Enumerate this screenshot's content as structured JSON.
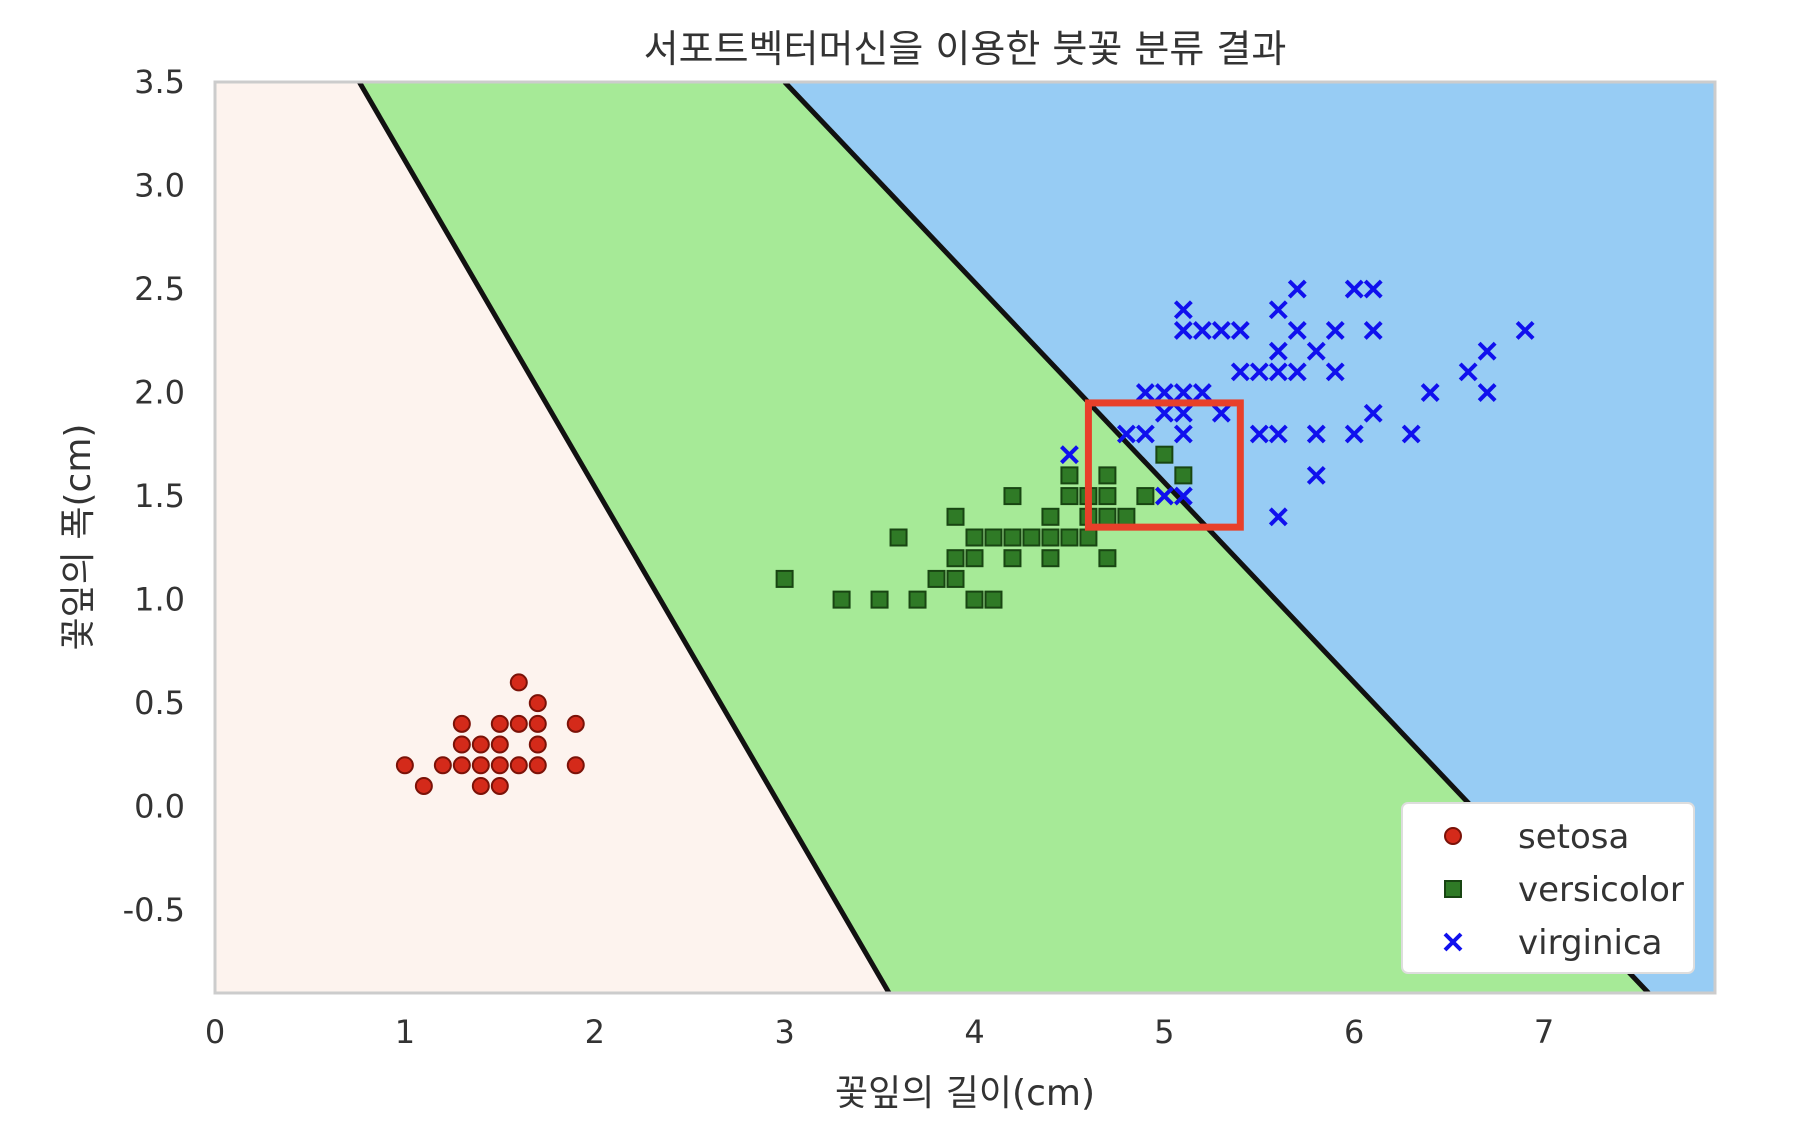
{
  "chart_data": {
    "type": "scatter",
    "title": "서포트벡터머신을 이용한 붓꽃 분류 결과",
    "xlabel": "꽃잎의 길이(cm)",
    "ylabel": "꽃잎의 폭(cm)",
    "xlim": [
      0,
      7.9
    ],
    "ylim": [
      -0.9,
      3.5
    ],
    "xticks": [
      0,
      1,
      2,
      3,
      4,
      5,
      6,
      7
    ],
    "yticks": [
      -0.5,
      0.0,
      0.5,
      1.0,
      1.5,
      2.0,
      2.5,
      3.0,
      3.5
    ],
    "ytick_labels": [
      "-0.5",
      "0.0",
      "0.5",
      "1.0",
      "1.5",
      "2.0",
      "2.5",
      "3.0",
      "3.5"
    ],
    "grid": false,
    "legend_position": "bottom-right",
    "decision_boundaries": [
      {
        "from": [
          0.76,
          3.5
        ],
        "to": [
          3.55,
          -0.9
        ]
      },
      {
        "from": [
          3.0,
          3.5
        ],
        "to": [
          7.55,
          -0.9
        ]
      }
    ],
    "regions": [
      {
        "class": "setosa",
        "color": "#fdf3ee"
      },
      {
        "class": "versicolor",
        "color": "#a6ea97"
      },
      {
        "class": "virginica",
        "color": "#97ccf4"
      }
    ],
    "highlight_box": {
      "x": [
        4.6,
        5.4
      ],
      "y": [
        1.35,
        1.95
      ],
      "color": "#e8402a"
    },
    "series": [
      {
        "name": "setosa",
        "marker": "circle",
        "color": "#d42a1a",
        "edge": "#7a1208",
        "points": [
          [
            1.0,
            0.2
          ],
          [
            1.1,
            0.1
          ],
          [
            1.2,
            0.2
          ],
          [
            1.3,
            0.2
          ],
          [
            1.3,
            0.3
          ],
          [
            1.3,
            0.4
          ],
          [
            1.4,
            0.1
          ],
          [
            1.4,
            0.2
          ],
          [
            1.4,
            0.3
          ],
          [
            1.5,
            0.1
          ],
          [
            1.5,
            0.2
          ],
          [
            1.5,
            0.3
          ],
          [
            1.5,
            0.4
          ],
          [
            1.6,
            0.2
          ],
          [
            1.6,
            0.4
          ],
          [
            1.6,
            0.6
          ],
          [
            1.7,
            0.2
          ],
          [
            1.7,
            0.3
          ],
          [
            1.7,
            0.4
          ],
          [
            1.7,
            0.5
          ],
          [
            1.9,
            0.2
          ],
          [
            1.9,
            0.4
          ]
        ]
      },
      {
        "name": "versicolor",
        "marker": "square",
        "color": "#2f7a26",
        "edge": "#184512",
        "points": [
          [
            3.0,
            1.1
          ],
          [
            3.3,
            1.0
          ],
          [
            3.5,
            1.0
          ],
          [
            3.6,
            1.3
          ],
          [
            3.7,
            1.0
          ],
          [
            3.8,
            1.1
          ],
          [
            3.9,
            1.1
          ],
          [
            3.9,
            1.2
          ],
          [
            3.9,
            1.4
          ],
          [
            4.0,
            1.0
          ],
          [
            4.0,
            1.2
          ],
          [
            4.0,
            1.3
          ],
          [
            4.1,
            1.0
          ],
          [
            4.1,
            1.3
          ],
          [
            4.2,
            1.2
          ],
          [
            4.2,
            1.3
          ],
          [
            4.2,
            1.5
          ],
          [
            4.3,
            1.3
          ],
          [
            4.4,
            1.2
          ],
          [
            4.4,
            1.3
          ],
          [
            4.4,
            1.4
          ],
          [
            4.5,
            1.3
          ],
          [
            4.5,
            1.5
          ],
          [
            4.5,
            1.6
          ],
          [
            4.6,
            1.3
          ],
          [
            4.6,
            1.4
          ],
          [
            4.6,
            1.5
          ],
          [
            4.7,
            1.2
          ],
          [
            4.7,
            1.4
          ],
          [
            4.7,
            1.5
          ],
          [
            4.7,
            1.6
          ],
          [
            4.8,
            1.4
          ],
          [
            4.9,
            1.5
          ],
          [
            5.0,
            1.7
          ],
          [
            5.1,
            1.6
          ]
        ]
      },
      {
        "name": "virginica",
        "marker": "x",
        "color": "#1010ee",
        "edge": "#1010ee",
        "points": [
          [
            4.5,
            1.7
          ],
          [
            4.8,
            1.8
          ],
          [
            4.9,
            1.8
          ],
          [
            4.9,
            2.0
          ],
          [
            5.0,
            1.5
          ],
          [
            5.0,
            1.9
          ],
          [
            5.0,
            2.0
          ],
          [
            5.1,
            1.5
          ],
          [
            5.1,
            1.8
          ],
          [
            5.1,
            1.9
          ],
          [
            5.1,
            2.0
          ],
          [
            5.1,
            2.3
          ],
          [
            5.1,
            2.4
          ],
          [
            5.2,
            2.0
          ],
          [
            5.2,
            2.3
          ],
          [
            5.3,
            1.9
          ],
          [
            5.3,
            2.3
          ],
          [
            5.4,
            2.1
          ],
          [
            5.4,
            2.3
          ],
          [
            5.5,
            1.8
          ],
          [
            5.5,
            2.1
          ],
          [
            5.6,
            1.4
          ],
          [
            5.6,
            1.8
          ],
          [
            5.6,
            2.1
          ],
          [
            5.6,
            2.2
          ],
          [
            5.6,
            2.4
          ],
          [
            5.7,
            2.1
          ],
          [
            5.7,
            2.3
          ],
          [
            5.7,
            2.5
          ],
          [
            5.8,
            1.6
          ],
          [
            5.8,
            1.8
          ],
          [
            5.8,
            2.2
          ],
          [
            5.9,
            2.1
          ],
          [
            5.9,
            2.3
          ],
          [
            6.0,
            1.8
          ],
          [
            6.0,
            2.5
          ],
          [
            6.1,
            1.9
          ],
          [
            6.1,
            2.3
          ],
          [
            6.1,
            2.5
          ],
          [
            6.3,
            1.8
          ],
          [
            6.4,
            2.0
          ],
          [
            6.6,
            2.1
          ],
          [
            6.7,
            2.0
          ],
          [
            6.7,
            2.2
          ],
          [
            6.9,
            2.3
          ]
        ]
      }
    ]
  }
}
